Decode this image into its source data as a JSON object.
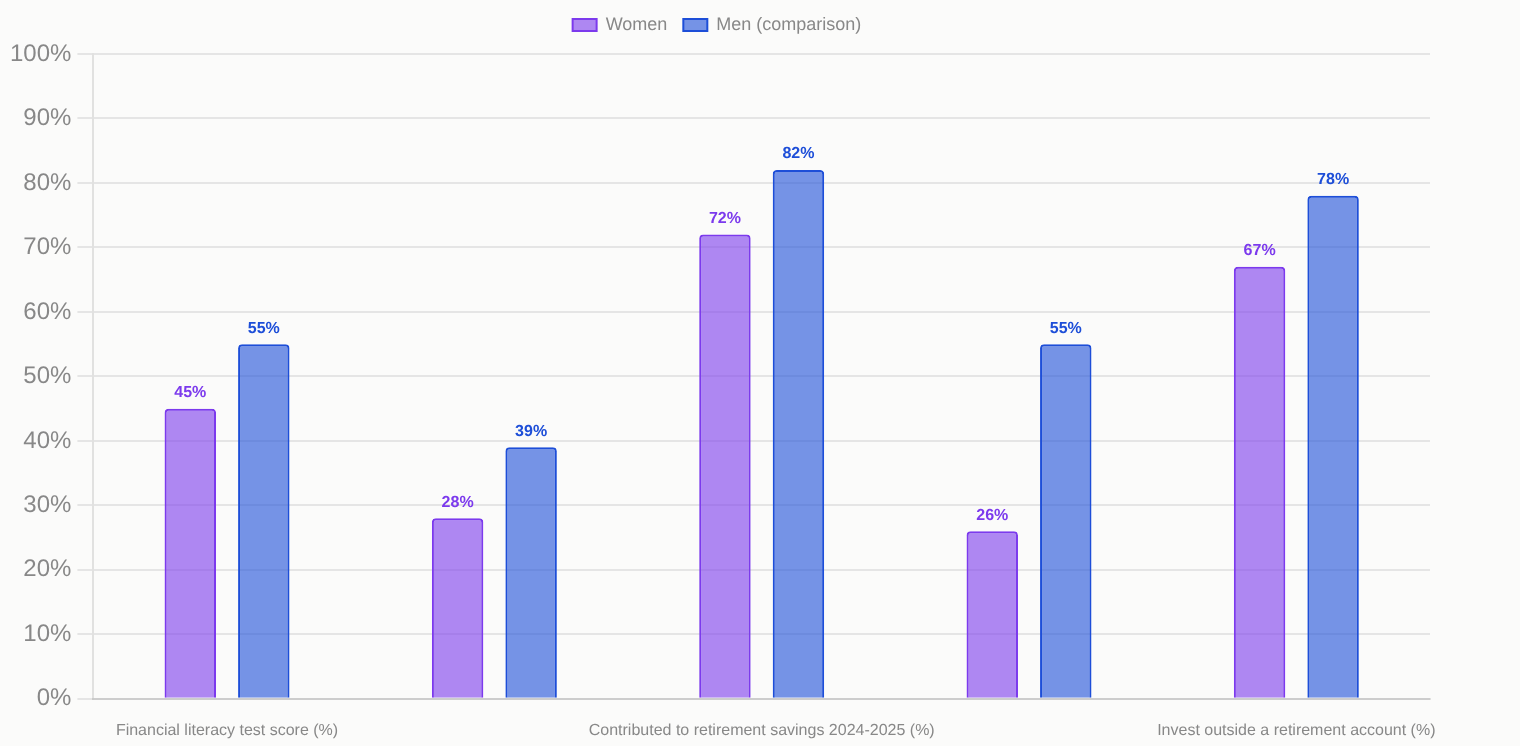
{
  "chart_data": {
    "type": "bar",
    "categories": [
      "Financial literacy test score (%)",
      null,
      "Contributed to retirement savings 2024-2025 (%)",
      null,
      "Invest outside a retirement account (%)"
    ],
    "series": [
      {
        "name": "Women",
        "color": "#7c3aed",
        "values": [
          45,
          28,
          72,
          26,
          67
        ],
        "value_labels": [
          "45%",
          "28%",
          "72%",
          "26%",
          "67%"
        ]
      },
      {
        "name": "Men (comparison)",
        "color": "#1d4ed8",
        "values": [
          55,
          39,
          82,
          55,
          78
        ],
        "value_labels": [
          "55%",
          "39%",
          "82%",
          "55%",
          "78%"
        ]
      }
    ],
    "ylim": [
      0,
      100
    ],
    "yticks": [
      {
        "value": 0,
        "label": "0%"
      },
      {
        "value": 10,
        "label": "10%"
      },
      {
        "value": 20,
        "label": "20%"
      },
      {
        "value": 30,
        "label": "30%"
      },
      {
        "value": 40,
        "label": "40%"
      },
      {
        "value": 50,
        "label": "50%"
      },
      {
        "value": 60,
        "label": "60%"
      },
      {
        "value": 70,
        "label": "70%"
      },
      {
        "value": 80,
        "label": "80%"
      },
      {
        "value": 90,
        "label": "90%"
      },
      {
        "value": 100,
        "label": "100%"
      }
    ],
    "grid": "y",
    "legend": "top"
  }
}
